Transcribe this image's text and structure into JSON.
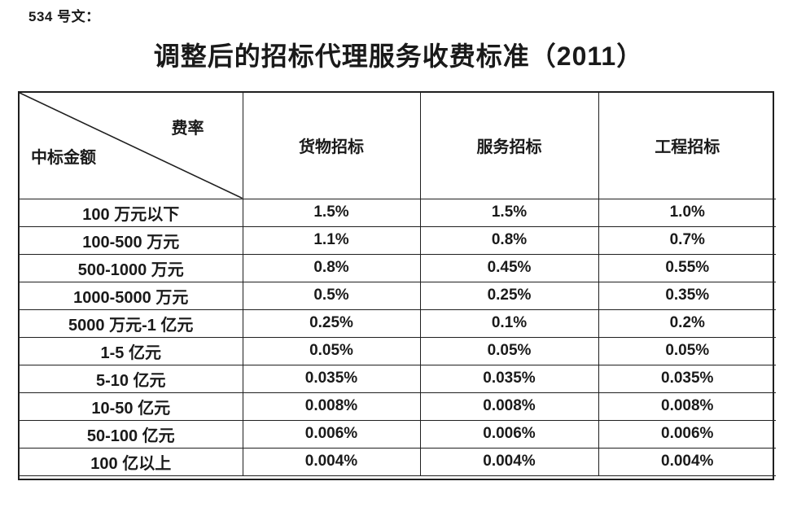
{
  "doc_number": "534 号文：",
  "title": "调整后的招标代理服务收费标准（2011）",
  "table": {
    "corner_top_right": "费率",
    "corner_bottom_left": "中标金额",
    "columns": [
      "货物招标",
      "服务招标",
      "工程招标"
    ],
    "rows": [
      {
        "label": "100 万元以下",
        "values": [
          "1.5%",
          "1.5%",
          "1.0%"
        ]
      },
      {
        "label": "100-500 万元",
        "values": [
          "1.1%",
          "0.8%",
          "0.7%"
        ]
      },
      {
        "label": "500-1000 万元",
        "values": [
          "0.8%",
          "0.45%",
          "0.55%"
        ]
      },
      {
        "label": "1000-5000 万元",
        "values": [
          "0.5%",
          "0.25%",
          "0.35%"
        ]
      },
      {
        "label": "5000 万元-1 亿元",
        "values": [
          "0.25%",
          "0.1%",
          "0.2%"
        ]
      },
      {
        "label": "1-5 亿元",
        "values": [
          "0.05%",
          "0.05%",
          "0.05%"
        ]
      },
      {
        "label": "5-10 亿元",
        "values": [
          "0.035%",
          "0.035%",
          "0.035%"
        ]
      },
      {
        "label": "10-50 亿元",
        "values": [
          "0.008%",
          "0.008%",
          "0.008%"
        ]
      },
      {
        "label": "50-100 亿元",
        "values": [
          "0.006%",
          "0.006%",
          "0.006%"
        ]
      },
      {
        "label": "100 亿以上",
        "values": [
          "0.004%",
          "0.004%",
          "0.004%"
        ]
      }
    ]
  },
  "colors": {
    "text": "#1a1a1a",
    "border": "#1f1f1f",
    "background": "#ffffff"
  }
}
